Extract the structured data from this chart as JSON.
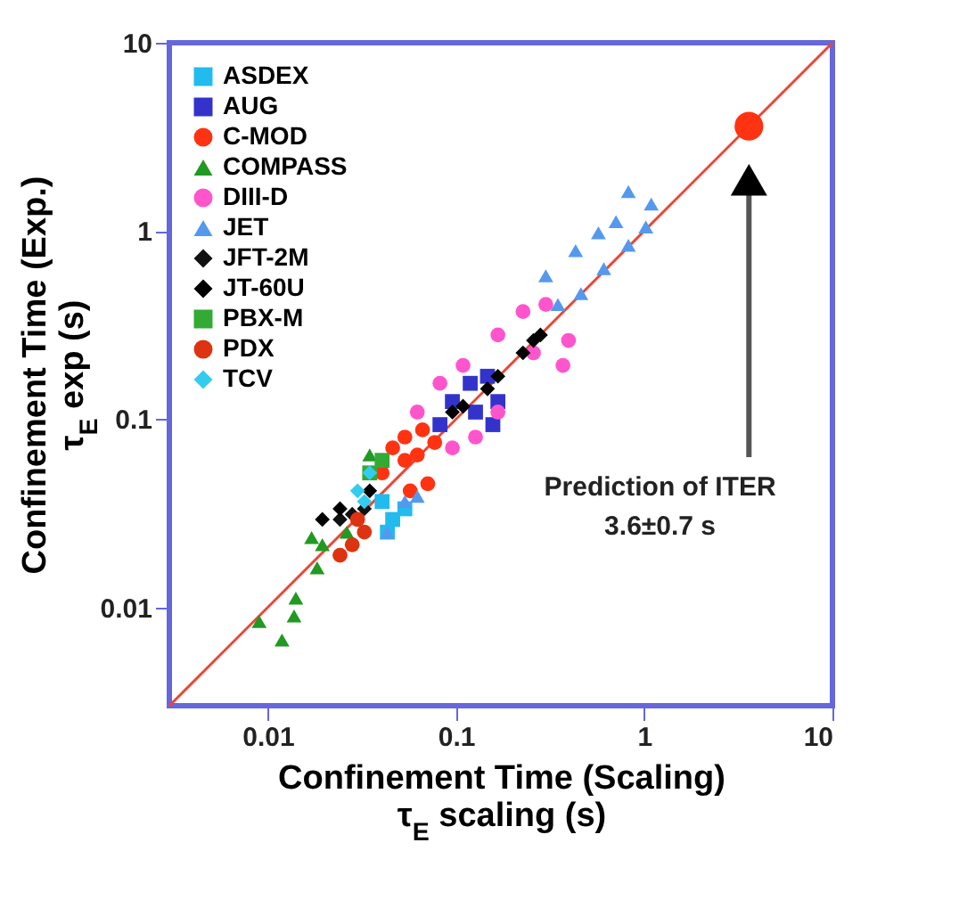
{
  "chart_data": {
    "type": "scatter",
    "xlabel": [
      "Confinement Time (Scaling)",
      "τ$_{E}$ scaling  (s)"
    ],
    "ylabel": [
      "Confinement Time  (Exp.)",
      "τ$_{E}$ exp (s)"
    ],
    "log": "xy",
    "xlim": [
      0.003,
      10
    ],
    "ylim": [
      0.003,
      10
    ],
    "xticks": [
      0.01,
      0.1,
      1,
      10
    ],
    "yticks": [
      0.01,
      0.1,
      1,
      10
    ],
    "legend": "top left",
    "annotations": [
      "Prediction of ITER",
      "3.6±0.7 s"
    ],
    "series": [
      {
        "type": "line",
        "color": "#ee4433",
        "x": [
          0.003,
          10
        ],
        "values": [
          0.003,
          10
        ]
      },
      {
        "name": "ASDEX",
        "color": "#22bbee",
        "marker": "square",
        "x": [
          0.0405,
          0.0461,
          0.0432,
          0.0535
        ],
        "values": [
          0.0365,
          0.0293,
          0.0251,
          0.0334
        ]
      },
      {
        "name": "AUG",
        "color": "#3333cc",
        "marker": "square",
        "x": [
          0.0822,
          0.0957,
          0.119,
          0.147,
          0.167,
          0.157,
          0.127
        ],
        "values": [
          0.0935,
          0.124,
          0.155,
          0.169,
          0.124,
          0.0935,
          0.109
        ]
      },
      {
        "name": "C-MOD",
        "color": "#ff3311",
        "marker": "circle",
        "x": [
          0.0405,
          0.0461,
          0.0535,
          0.0664,
          0.0771,
          0.0708,
          0.0571,
          0.0535,
          0.0623
        ],
        "values": [
          0.0518,
          0.0704,
          0.0803,
          0.0877,
          0.0752,
          0.0454,
          0.0416,
          0.0604,
          0.0645
        ]
      },
      {
        "name": "COMPASS",
        "color": "#229922",
        "marker": "triangle",
        "x": [
          0.009,
          0.0119,
          0.0138,
          0.0141,
          0.0183,
          0.0195,
          0.0171,
          0.0263,
          0.0348
        ],
        "values": [
          0.0084,
          0.0067,
          0.009,
          0.0112,
          0.0162,
          0.0215,
          0.0235,
          0.0251,
          0.0645
        ]
      },
      {
        "name": "DIII-D",
        "color": "#ff55cc",
        "marker": "circle",
        "x": [
          0.0623,
          0.0822,
          0.109,
          0.167,
          0.227,
          0.3,
          0.396,
          0.258,
          0.167,
          0.127,
          0.0957,
          0.37
        ],
        "values": [
          0.109,
          0.155,
          0.193,
          0.28,
          0.373,
          0.407,
          0.262,
          0.225,
          0.109,
          0.0803,
          0.0704,
          0.193
        ]
      },
      {
        "name": "JET",
        "color": "#5599ee",
        "marker": "triangle",
        "x": [
          0.0432,
          0.0535,
          0.0623,
          0.3,
          0.348,
          0.432,
          0.571,
          0.708,
          0.824,
          1.02,
          1.09,
          0.461,
          0.61,
          0.824
        ],
        "values": [
          0.0251,
          0.0365,
          0.0389,
          0.578,
          0.407,
          0.786,
          0.977,
          1.12,
          1.62,
          1.05,
          1.39,
          0.464,
          0.631,
          0.839
        ]
      },
      {
        "name": "JFT-2M",
        "color": "#111111",
        "marker": "diamond",
        "x": [
          0.0242,
          0.0281,
          0.0326
        ],
        "values": [
          0.0293,
          0.0312,
          0.0334
        ]
      },
      {
        "name": "JT-60U",
        "color": "#000000",
        "marker": "diamond",
        "x": [
          0.0957,
          0.109,
          0.147,
          0.167,
          0.227,
          0.258,
          0.281,
          0.0195,
          0.0242,
          0.0348
        ],
        "values": [
          0.109,
          0.117,
          0.145,
          0.169,
          0.225,
          0.262,
          0.28,
          0.0293,
          0.0334,
          0.0416
        ]
      },
      {
        "name": "PBX-M",
        "color": "#33aa33",
        "marker": "square",
        "x": [
          0.0348,
          0.0405
        ],
        "values": [
          0.0518,
          0.0604
        ]
      },
      {
        "name": "PDX",
        "color": "#dd3311",
        "marker": "circle",
        "x": [
          0.0242,
          0.0281,
          0.0326,
          0.03
        ],
        "values": [
          0.0189,
          0.0215,
          0.0251,
          0.0293
        ]
      },
      {
        "name": "TCV",
        "color": "#33ccee",
        "marker": "diamond",
        "x": [
          0.03,
          0.0348,
          0.0326
        ],
        "values": [
          0.0416,
          0.0518,
          0.0365
        ]
      },
      {
        "color": "#ff3311",
        "marker": "circle",
        "x": [
          3.6
        ],
        "values": [
          3.6
        ]
      }
    ]
  }
}
